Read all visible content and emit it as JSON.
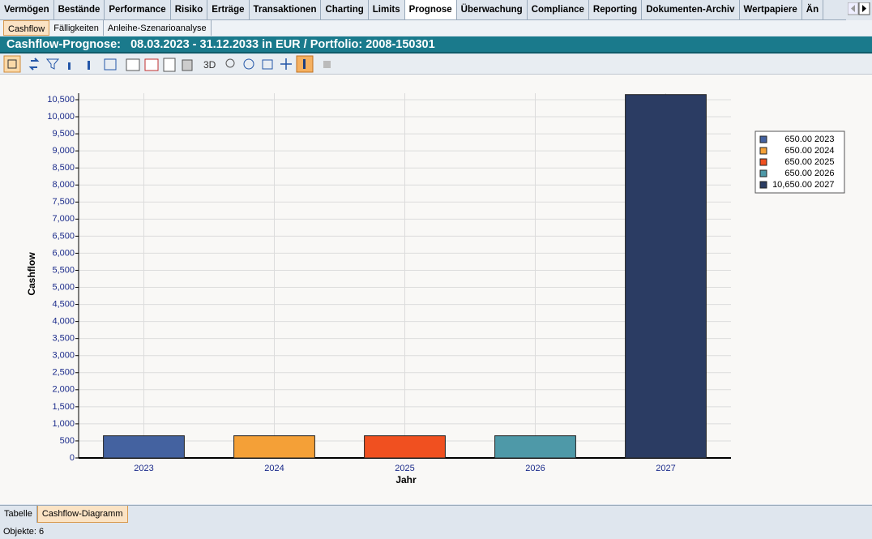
{
  "tabs": [
    "Vermögen",
    "Bestände",
    "Performance",
    "Risiko",
    "Erträge",
    "Transaktionen",
    "Charting",
    "Limits",
    "Prognose",
    "Überwachung",
    "Compliance",
    "Reporting",
    "Dokumenten-Archiv",
    "Wertpapiere",
    "Än"
  ],
  "subtabs": [
    "Cashflow",
    "Fälligkeiten",
    "Anleihe-Szenarioanalyse"
  ],
  "header": {
    "title": "Cashflow-Prognose:   08.03.2023 - 31.12.2033 in EUR / Portfolio: 2008-150301"
  },
  "toolbar": {
    "label_3d": "3D"
  },
  "chart_data": {
    "type": "bar",
    "categories": [
      "2023",
      "2024",
      "2025",
      "2026",
      "2027"
    ],
    "values": [
      650,
      650,
      650,
      650,
      10650
    ],
    "value_labels": [
      "650.00",
      "650.00",
      "650.00",
      "650.00",
      "10,650.00"
    ],
    "colors": [
      "#4462a0",
      "#f4a037",
      "#f05020",
      "#4e99a8",
      "#2b3c63"
    ],
    "x_label": "Jahr",
    "y_label": "Cashflow",
    "ylim": [
      0,
      10500
    ],
    "yticks": [
      0,
      500,
      {
        "value": 1000,
        "label": "1,000"
      },
      {
        "value": 1500,
        "label": "1,500"
      },
      {
        "value": 2000,
        "label": "2,000"
      },
      {
        "value": 2500,
        "label": "2,500"
      },
      {
        "value": 3000,
        "label": "3,000"
      },
      {
        "value": 3500,
        "label": "3,500"
      },
      {
        "value": 4000,
        "label": "4,000"
      },
      {
        "value": 4500,
        "label": "4,500"
      },
      {
        "value": 5000,
        "label": "5,000"
      },
      {
        "value": 5500,
        "label": "5,500"
      },
      {
        "value": 6000,
        "label": "6,000"
      },
      {
        "value": 6500,
        "label": "6,500"
      },
      {
        "value": 7000,
        "label": "7,000"
      },
      {
        "value": 7500,
        "label": "7,500"
      },
      {
        "value": 8000,
        "label": "8,000"
      },
      {
        "value": 8500,
        "label": "8,500"
      },
      {
        "value": 9000,
        "label": "9,000"
      },
      {
        "value": 9500,
        "label": "9,500"
      },
      {
        "value": 10000,
        "label": "10,000"
      },
      {
        "value": 10500,
        "label": "10,500"
      }
    ],
    "grid": true,
    "legend": "right"
  },
  "bottom_tabs": [
    "Tabelle",
    "Cashflow-Diagramm"
  ],
  "status": "Objekte: 6"
}
